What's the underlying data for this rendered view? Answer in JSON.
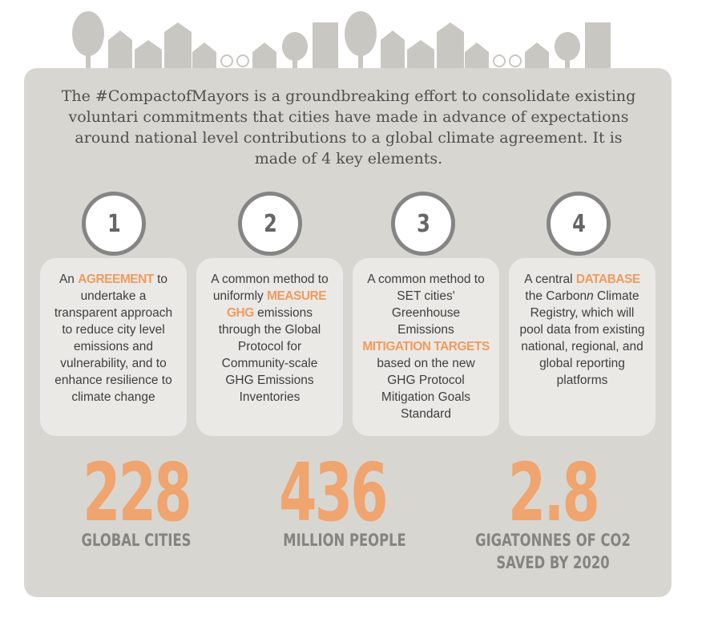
{
  "intro": "The #CompactofMayors is a groundbreaking effort to consolidate existing voluntari commitments that cities have made in advance of expectations around national level contributions to a global climate agreement. It is made of 4 key elements.",
  "elements": [
    {
      "number": "1",
      "parts": [
        {
          "text": "An "
        },
        {
          "text": "AGREEMENT",
          "style": "highlight"
        },
        {
          "text": " to undertake a transparent approach to reduce city level emissions and vulnerability, and to enhance resilience to climate change"
        }
      ]
    },
    {
      "number": "2",
      "parts": [
        {
          "text": "A common method to uniformly "
        },
        {
          "text": "MEASURE GHG",
          "style": "highlight"
        },
        {
          "text": " emissions through the Global Protocol for Community-scale GHG Emissions Inventories"
        }
      ]
    },
    {
      "number": "3",
      "parts": [
        {
          "text": "A common method to SET cities' Greenhouse Emissions "
        },
        {
          "text": "MITIGATION TARGETS",
          "style": "highlight"
        },
        {
          "text": " based on the new GHG Protocol Mitigation Goals Standard"
        }
      ]
    },
    {
      "number": "4",
      "parts": [
        {
          "text": "A central "
        },
        {
          "text": "DATABASE",
          "style": "highlight"
        },
        {
          "text": " the Carbon"
        },
        {
          "text": "n",
          "style": "italic"
        },
        {
          "text": " Climate Registry, which will pool data from existing national, regional, and global reporting platforms"
        }
      ]
    }
  ],
  "stats": [
    {
      "value": "228",
      "label": "GLOBAL CITIES"
    },
    {
      "value": "436",
      "label": "MILLION PEOPLE"
    },
    {
      "value": "2.8",
      "label": "GIGATONNES OF CO2 SAVED BY 2020"
    }
  ]
}
